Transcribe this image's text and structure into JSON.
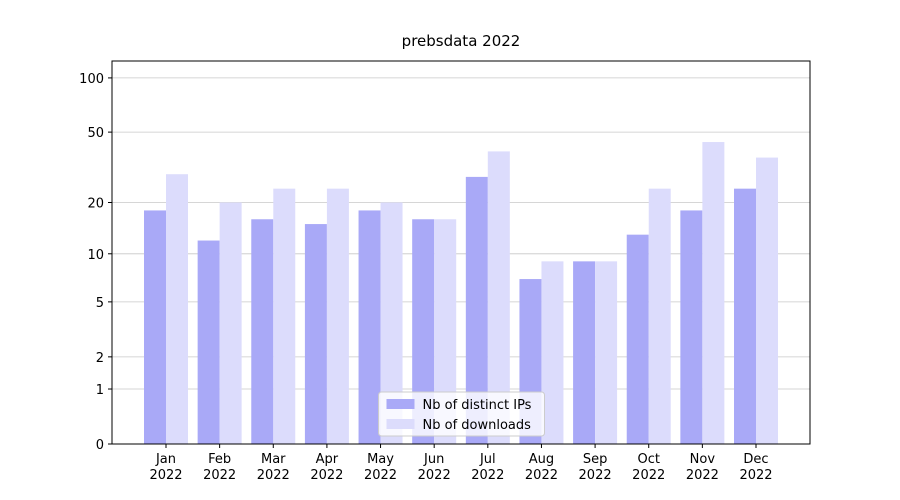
{
  "chart_data": {
    "type": "bar",
    "title": "prebsdata 2022",
    "categories": [
      "Jan\n2022",
      "Feb\n2022",
      "Mar\n2022",
      "Apr\n2022",
      "May\n2022",
      "Jun\n2022",
      "Jul\n2022",
      "Aug\n2022",
      "Sep\n2022",
      "Oct\n2022",
      "Nov\n2022",
      "Dec\n2022"
    ],
    "series": [
      {
        "name": "Nb of distinct IPs",
        "color": "#a9a9f7",
        "values": [
          18,
          12,
          16,
          15,
          18,
          16,
          28,
          7,
          9,
          13,
          18,
          24
        ]
      },
      {
        "name": "Nb of downloads",
        "color": "#dcdcfc",
        "values": [
          29,
          20,
          24,
          24,
          20,
          16,
          39,
          9,
          9,
          24,
          44,
          36
        ]
      }
    ],
    "yscale": "log1p",
    "ylim": [
      0,
      124
    ],
    "yticks": [
      0,
      1,
      2,
      5,
      10,
      20,
      50,
      100
    ],
    "grid": true,
    "legend": "lower center"
  }
}
